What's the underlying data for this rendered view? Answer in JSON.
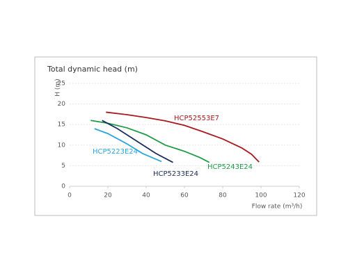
{
  "chart_data": {
    "type": "line",
    "title": "Total dynamic head (m)",
    "y_label": "H (m)",
    "x_label": "Flow rate (m³/h)",
    "xlim": [
      0,
      120
    ],
    "xticks": [
      0,
      20,
      40,
      60,
      80,
      100,
      120
    ],
    "ylim": [
      0,
      25
    ],
    "yticks": [
      0,
      5,
      10,
      15,
      20,
      25
    ],
    "grid": true,
    "series": [
      {
        "name": "HCP52553E7",
        "color": "#a8191e",
        "x": [
          19,
          30,
          40,
          50,
          60,
          70,
          80,
          90,
          95,
          99
        ],
        "values": [
          18,
          17.4,
          16.7,
          15.9,
          14.8,
          13.2,
          11.5,
          9.3,
          7.8,
          5.9
        ]
      },
      {
        "name": "HCP5243E24",
        "color": "#1f9a45",
        "x": [
          11,
          20,
          30,
          40,
          50,
          60,
          68,
          73
        ],
        "values": [
          16,
          15.3,
          14.2,
          12.5,
          10,
          8.5,
          7,
          5.8
        ]
      },
      {
        "name": "HCP5233E24",
        "color": "#1b2a5c",
        "x": [
          17,
          25,
          35,
          45,
          54
        ],
        "values": [
          16,
          14,
          11,
          8,
          5.8
        ]
      },
      {
        "name": "HCP5223E24",
        "color": "#2aa6dc",
        "x": [
          13,
          20,
          30,
          38,
          48
        ],
        "values": [
          14,
          12.8,
          10.3,
          8,
          6
        ]
      }
    ]
  }
}
